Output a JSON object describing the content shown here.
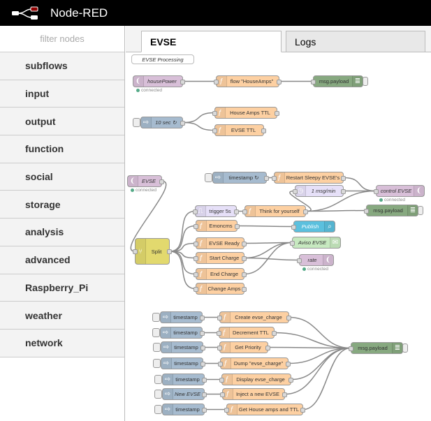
{
  "header": {
    "title": "Node-RED"
  },
  "sidebar": {
    "filter_placeholder": "filter nodes",
    "categories": [
      "subflows",
      "input",
      "output",
      "function",
      "social",
      "storage",
      "analysis",
      "advanced",
      "Raspberry_Pi",
      "weather",
      "network"
    ]
  },
  "tabs": [
    {
      "label": "EVSE",
      "active": true
    },
    {
      "label": "Logs",
      "active": false
    }
  ],
  "colors": {
    "function": "#fdd0a2",
    "inject": "#a6bbcf",
    "mqtt": "#d8bfd8",
    "debug": "#87a980",
    "delay": "#e6e0f8",
    "switch": "#e2d96e",
    "email": "#c7e9c0",
    "publish": "#5bc0de",
    "comment": "#ffffff"
  },
  "status_text": "connected",
  "nodes": [
    {
      "label": "EVSE Processing",
      "type": "comment"
    },
    {
      "label": "housePower",
      "type": "mqtt-in",
      "status": true
    },
    {
      "label": "flow \"HouseAmps\"",
      "type": "function"
    },
    {
      "label": "msg.payload",
      "type": "debug"
    },
    {
      "label": "10 sec ↻",
      "type": "inject"
    },
    {
      "label": "House Amps TTL",
      "type": "function"
    },
    {
      "label": "EVSE TTL",
      "type": "function"
    },
    {
      "label": "EVSE",
      "type": "mqtt-in",
      "status": true
    },
    {
      "label": "timestamp ↻",
      "type": "inject"
    },
    {
      "label": "Restart Sleepy EVSE's",
      "type": "function"
    },
    {
      "label": "1 msg/min",
      "type": "delay"
    },
    {
      "label": "control EVSE",
      "type": "mqtt-out",
      "status": true
    },
    {
      "label": "trigger 5s",
      "type": "trigger"
    },
    {
      "label": "Think for yourself",
      "type": "function"
    },
    {
      "label": "msg.payload",
      "type": "debug"
    },
    {
      "label": "Emoncms",
      "type": "function"
    },
    {
      "label": "Publish",
      "type": "publish"
    },
    {
      "label": "Split",
      "type": "switch"
    },
    {
      "label": "EVSE Ready",
      "type": "function"
    },
    {
      "label": "Aviso EVSE",
      "type": "email"
    },
    {
      "label": "Start Charge",
      "type": "function"
    },
    {
      "label": "rate",
      "type": "mqtt-out",
      "status": true
    },
    {
      "label": "End Charge",
      "type": "function"
    },
    {
      "label": "Change Amps",
      "type": "function"
    },
    {
      "label": "timestamp",
      "type": "inject"
    },
    {
      "label": "Create evse_charge",
      "type": "function"
    },
    {
      "label": "timestamp",
      "type": "inject"
    },
    {
      "label": "Decrement TTL",
      "type": "function"
    },
    {
      "label": "timestamp",
      "type": "inject"
    },
    {
      "label": "Get Priority",
      "type": "function"
    },
    {
      "label": "timestamp",
      "type": "inject"
    },
    {
      "label": "Dump \"evse_charge\"",
      "type": "function"
    },
    {
      "label": "timestamp",
      "type": "inject"
    },
    {
      "label": "Display evse_charge",
      "type": "function"
    },
    {
      "label": "New EVSE",
      "type": "inject"
    },
    {
      "label": "Inject a new EVSE",
      "type": "function"
    },
    {
      "label": "timestamp",
      "type": "inject"
    },
    {
      "label": "Get House amps and TTL",
      "type": "function"
    },
    {
      "label": "msg.payload",
      "type": "debug"
    }
  ]
}
